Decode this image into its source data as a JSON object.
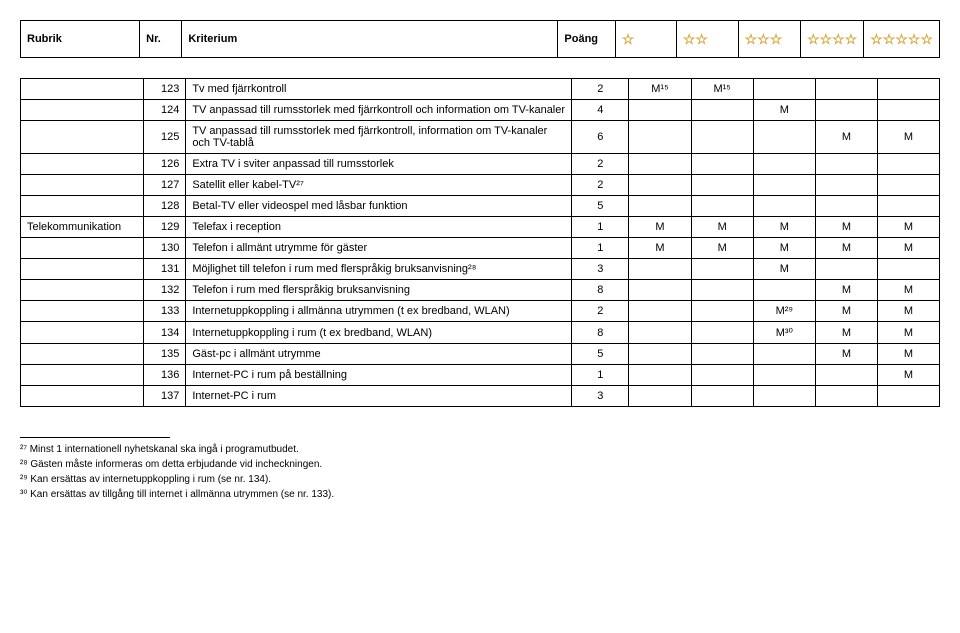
{
  "headers": {
    "rubrik": "Rubrik",
    "nr": "Nr.",
    "kriterium": "Kriterium",
    "poang": "Poäng"
  },
  "stars": [
    "☆",
    "☆☆",
    "☆☆☆",
    "☆☆☆☆",
    "☆☆☆☆☆"
  ],
  "stars_double": "☆☆\n☆☆☆",
  "category": "Telekommunikation",
  "rows": [
    {
      "nr": "123",
      "kriterium": "Tv med fjärrkontroll",
      "poang": "2",
      "s": [
        "M¹⁵",
        "M¹⁵",
        "",
        "",
        ""
      ]
    },
    {
      "nr": "124",
      "kriterium": "TV anpassad till rumsstorlek med fjärrkontroll och information om TV-kanaler",
      "poang": "4",
      "s": [
        "",
        "",
        "M",
        "",
        ""
      ]
    },
    {
      "nr": "125",
      "kriterium": "TV anpassad till rumsstorlek med fjärrkontroll, information om TV-kanaler och TV-tablå",
      "poang": "6",
      "s": [
        "",
        "",
        "",
        "M",
        "M"
      ]
    },
    {
      "nr": "126",
      "kriterium": "Extra TV i sviter anpassad till rumsstorlek",
      "poang": "2",
      "s": [
        "",
        "",
        "",
        "",
        ""
      ]
    },
    {
      "nr": "127",
      "kriterium": "Satellit eller kabel-TV²⁷",
      "poang": "2",
      "s": [
        "",
        "",
        "",
        "",
        ""
      ]
    },
    {
      "nr": "128",
      "kriterium": "Betal-TV eller videospel med låsbar funktion",
      "poang": "5",
      "s": [
        "",
        "",
        "",
        "",
        ""
      ]
    },
    {
      "nr": "129",
      "kriterium": "Telefax i reception",
      "poang": "1",
      "s": [
        "M",
        "M",
        "M",
        "M",
        "M"
      ],
      "category": true
    },
    {
      "nr": "130",
      "kriterium": "Telefon i allmänt utrymme för gäster",
      "poang": "1",
      "s": [
        "M",
        "M",
        "M",
        "M",
        "M"
      ]
    },
    {
      "nr": "131",
      "kriterium": "Möjlighet till telefon i rum med flerspråkig bruksanvisning²⁸",
      "poang": "3",
      "s": [
        "",
        "",
        "M",
        "",
        ""
      ]
    },
    {
      "nr": "132",
      "kriterium": "Telefon i rum med flerspråkig bruksanvisning",
      "poang": "8",
      "s": [
        "",
        "",
        "",
        "M",
        "M"
      ]
    },
    {
      "nr": "133",
      "kriterium": "Internetuppkoppling i allmänna utrymmen (t ex bredband, WLAN)",
      "poang": "2",
      "s": [
        "",
        "",
        "M²⁹",
        "M",
        "M"
      ]
    },
    {
      "nr": "134",
      "kriterium": "Internetuppkoppling i rum (t ex bredband, WLAN)",
      "poang": "8",
      "s": [
        "",
        "",
        "M³⁰",
        "M",
        "M"
      ]
    },
    {
      "nr": "135",
      "kriterium": "Gäst-pc i allmänt utrymme",
      "poang": "5",
      "s": [
        "",
        "",
        "",
        "M",
        "M"
      ]
    },
    {
      "nr": "136",
      "kriterium": "Internet-PC i rum på beställning",
      "poang": "1",
      "s": [
        "",
        "",
        "",
        "",
        "M"
      ]
    },
    {
      "nr": "137",
      "kriterium": "Internet-PC i rum",
      "poang": "3",
      "s": [
        "",
        "",
        "",
        "",
        ""
      ]
    }
  ],
  "footnotes": [
    "²⁷ Minst 1 internationell nyhetskanal ska ingå i programutbudet.",
    "²⁸ Gästen måste informeras om detta erbjudande vid incheckningen.",
    "²⁹ Kan ersättas av internetuppkoppling i rum (se nr. 134).",
    "³⁰ Kan ersättas av tillgång till internet i allmänna utrymmen (se nr. 133)."
  ]
}
